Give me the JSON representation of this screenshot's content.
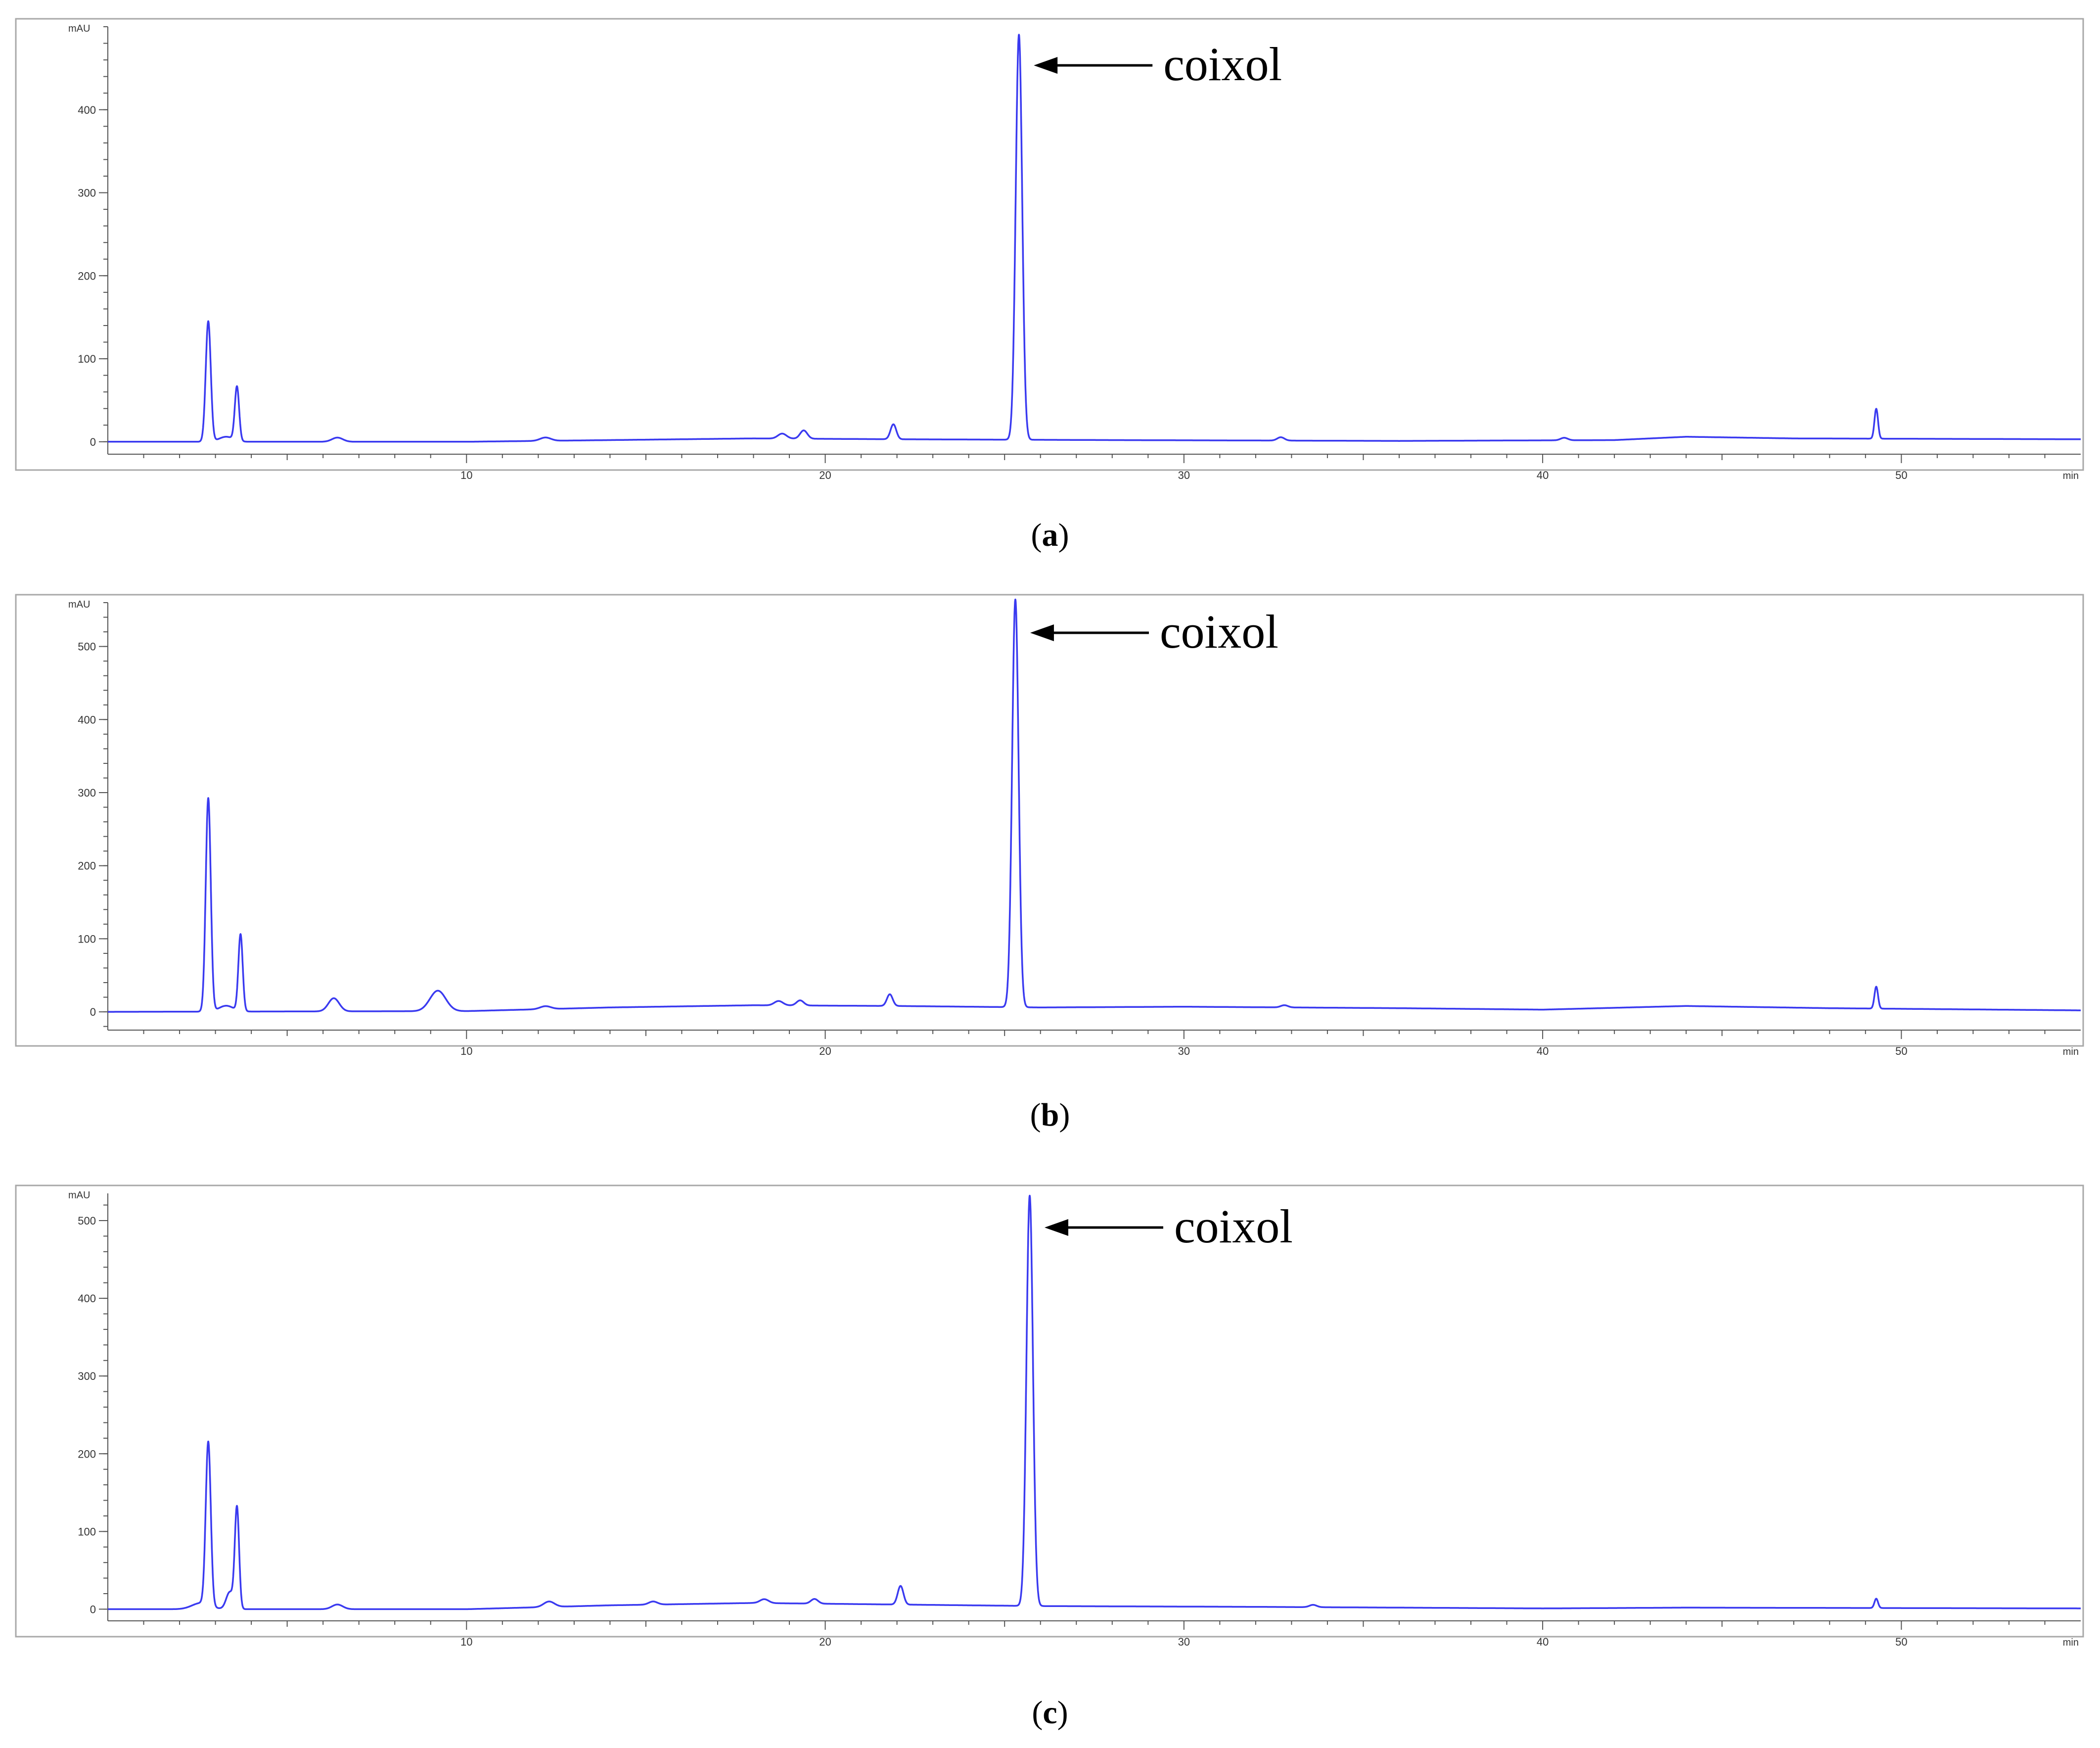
{
  "trace_color": "#3a3af0",
  "arrow_icon": "left-arrow-icon",
  "chart_data": [
    {
      "type": "line",
      "caption_letter": "a",
      "ylabel": "mAU",
      "xunit": "min",
      "xlim": [
        0,
        55
      ],
      "ylim": [
        -15,
        500
      ],
      "x_ticks": [
        10,
        20,
        30,
        40,
        50
      ],
      "y_ticks": [
        0,
        100,
        200,
        300,
        400
      ],
      "y_minor_step": 20,
      "baseline": [
        [
          0,
          0
        ],
        [
          10,
          0
        ],
        [
          14,
          2
        ],
        [
          18,
          4
        ],
        [
          22,
          3
        ],
        [
          28,
          2
        ],
        [
          36,
          1
        ],
        [
          42,
          2
        ],
        [
          44,
          6
        ],
        [
          47,
          4
        ],
        [
          55,
          3
        ]
      ],
      "peaks": [
        {
          "x": 2.8,
          "y": 145,
          "w": 0.07
        },
        {
          "x": 3.6,
          "y": 65,
          "w": 0.06
        },
        {
          "x": 3.3,
          "y": 6,
          "w": 0.2
        },
        {
          "x": 6.4,
          "y": 5,
          "w": 0.15
        },
        {
          "x": 12.2,
          "y": 4,
          "w": 0.15
        },
        {
          "x": 18.8,
          "y": 6,
          "w": 0.12
        },
        {
          "x": 19.4,
          "y": 10,
          "w": 0.1
        },
        {
          "x": 21.9,
          "y": 18,
          "w": 0.08
        },
        {
          "x": 25.4,
          "y": 488,
          "w": 0.09
        },
        {
          "x": 32.7,
          "y": 4,
          "w": 0.1
        },
        {
          "x": 40.6,
          "y": 3,
          "w": 0.1
        },
        {
          "x": 49.3,
          "y": 36,
          "w": 0.05
        }
      ],
      "annotation": {
        "text": "coixol",
        "x": 25.4,
        "y": 488
      }
    },
    {
      "type": "line",
      "caption_letter": "b",
      "ylabel": "mAU",
      "xunit": "min",
      "xlim": [
        0,
        55
      ],
      "ylim": [
        -25,
        560
      ],
      "x_ticks": [
        10,
        20,
        30,
        40,
        50
      ],
      "y_ticks": [
        0,
        100,
        200,
        300,
        400,
        500
      ],
      "y_minor_step": 20,
      "baseline": [
        [
          0,
          0
        ],
        [
          10,
          1
        ],
        [
          14,
          6
        ],
        [
          18,
          9
        ],
        [
          22,
          8
        ],
        [
          26,
          6
        ],
        [
          30,
          7
        ],
        [
          36,
          5
        ],
        [
          40,
          3
        ],
        [
          44,
          8
        ],
        [
          48,
          5
        ],
        [
          55,
          2
        ]
      ],
      "peaks": [
        {
          "x": 2.8,
          "y": 292,
          "w": 0.07
        },
        {
          "x": 3.7,
          "y": 105,
          "w": 0.06
        },
        {
          "x": 3.3,
          "y": 8,
          "w": 0.2
        },
        {
          "x": 6.3,
          "y": 18,
          "w": 0.15
        },
        {
          "x": 9.2,
          "y": 28,
          "w": 0.22
        },
        {
          "x": 12.2,
          "y": 4,
          "w": 0.15
        },
        {
          "x": 18.7,
          "y": 6,
          "w": 0.12
        },
        {
          "x": 19.3,
          "y": 7,
          "w": 0.1
        },
        {
          "x": 21.8,
          "y": 16,
          "w": 0.08
        },
        {
          "x": 25.3,
          "y": 558,
          "w": 0.09
        },
        {
          "x": 32.8,
          "y": 3,
          "w": 0.1
        },
        {
          "x": 49.3,
          "y": 30,
          "w": 0.05
        }
      ],
      "annotation": {
        "text": "coixol",
        "x": 25.3,
        "y": 558
      }
    },
    {
      "type": "line",
      "caption_letter": "c",
      "ylabel": "mAU",
      "xunit": "min",
      "xlim": [
        0,
        55
      ],
      "ylim": [
        -15,
        535
      ],
      "x_ticks": [
        10,
        20,
        30,
        40,
        50
      ],
      "y_ticks": [
        0,
        100,
        200,
        300,
        400,
        500
      ],
      "y_minor_step": 20,
      "baseline": [
        [
          0,
          0
        ],
        [
          10,
          0
        ],
        [
          14,
          5
        ],
        [
          18,
          8
        ],
        [
          22,
          6
        ],
        [
          26,
          4
        ],
        [
          32,
          3
        ],
        [
          40,
          1
        ],
        [
          44,
          2
        ],
        [
          55,
          1
        ]
      ],
      "peaks": [
        {
          "x": 2.8,
          "y": 210,
          "w": 0.07
        },
        {
          "x": 3.6,
          "y": 130,
          "w": 0.06
        },
        {
          "x": 3.4,
          "y": 22,
          "w": 0.1
        },
        {
          "x": 2.6,
          "y": 8,
          "w": 0.25
        },
        {
          "x": 6.4,
          "y": 6,
          "w": 0.15
        },
        {
          "x": 12.3,
          "y": 7,
          "w": 0.15
        },
        {
          "x": 15.2,
          "y": 4,
          "w": 0.12
        },
        {
          "x": 18.3,
          "y": 5,
          "w": 0.12
        },
        {
          "x": 19.7,
          "y": 6,
          "w": 0.1
        },
        {
          "x": 22.1,
          "y": 24,
          "w": 0.08
        },
        {
          "x": 25.7,
          "y": 528,
          "w": 0.09
        },
        {
          "x": 33.6,
          "y": 3,
          "w": 0.1
        },
        {
          "x": 49.3,
          "y": 12,
          "w": 0.05
        }
      ],
      "annotation": {
        "text": "coixol",
        "x": 25.7,
        "y": 528
      }
    }
  ]
}
